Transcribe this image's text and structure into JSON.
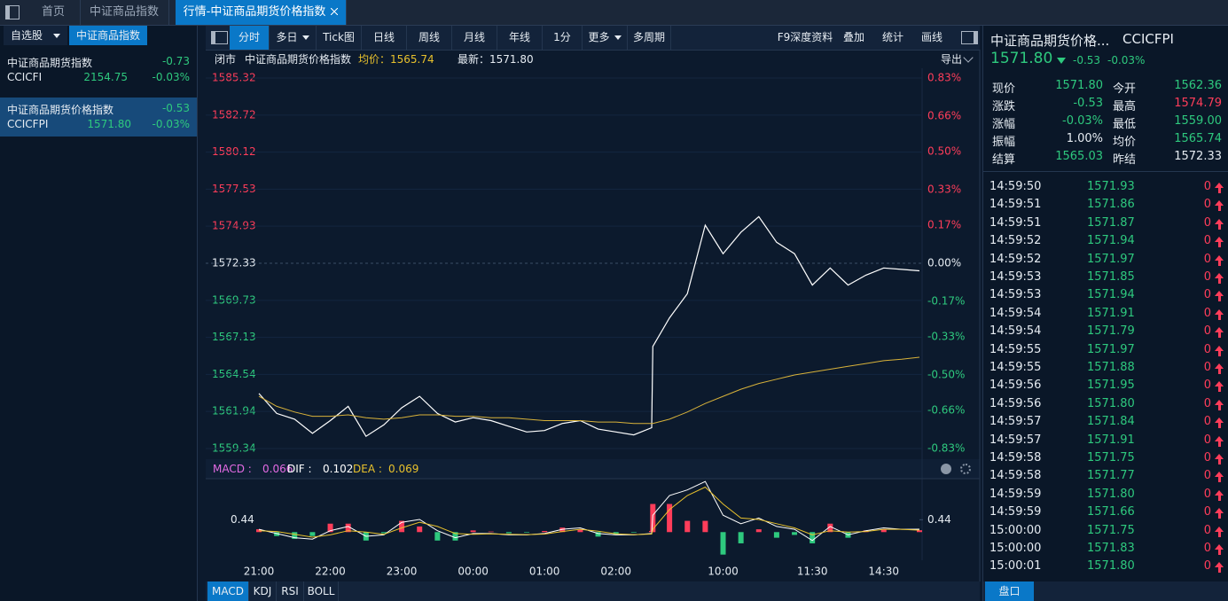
{
  "top_tabs": [
    "首页",
    "中证商品指数",
    "行情-中证商品期货价格指数"
  ],
  "sidebar": {
    "tabs": [
      "自选股",
      "中证商品指数"
    ],
    "items": [
      {
        "name": "中证商品期货指数",
        "change": "-0.73",
        "code": "CCICFI",
        "price": "2154.75",
        "pct": "-0.03%"
      },
      {
        "name": "中证商品期货价格指数",
        "change": "-0.53",
        "code": "CCICFPI",
        "price": "1571.80",
        "pct": "-0.03%"
      }
    ]
  },
  "toolbar": {
    "left": [
      "分时",
      "多日",
      "Tick图",
      "日线",
      "周线",
      "月线",
      "年线",
      "1分",
      "更多",
      "多周期"
    ],
    "right": [
      "F9深度资料",
      "叠加",
      "统计",
      "画线"
    ]
  },
  "info_bar": {
    "status": "闭市",
    "name": "中证商品期货价格指数",
    "avg": "均价：1565.74",
    "last": "最新：1571.80",
    "export": "导出"
  },
  "chart_data": [
    {
      "type": "line",
      "x": [
        0,
        15,
        30,
        45,
        60,
        75,
        90,
        105,
        120,
        135,
        150,
        165,
        180,
        195,
        210,
        225,
        240,
        255,
        270,
        285,
        300,
        315,
        330,
        331,
        345,
        360,
        375,
        390,
        405,
        420,
        435,
        450,
        465,
        480,
        495,
        510,
        525,
        540,
        555
      ],
      "xlim": [
        0,
        555
      ],
      "ylim": [
        1559.34,
        1585.32
      ],
      "yticks": [
        1585.32,
        1582.72,
        1580.12,
        1577.53,
        1574.93,
        1572.33,
        1569.73,
        1567.13,
        1564.54,
        1561.94,
        1559.34
      ],
      "y2lim": [
        -0.83,
        0.83
      ],
      "y2ticks": [
        {
          "value": 0.83,
          "label": "0.83%"
        },
        {
          "value": 0.66,
          "label": "0.66%"
        },
        {
          "value": 0.5,
          "label": "0.50%"
        },
        {
          "value": 0.33,
          "label": "0.33%"
        },
        {
          "value": 0.17,
          "label": "0.17%"
        },
        {
          "value": 0,
          "label": "0.00%"
        },
        {
          "value": -0.17,
          "label": "-0.17%"
        },
        {
          "value": -0.33,
          "label": "-0.33%"
        },
        {
          "value": -0.5,
          "label": "-0.50%"
        },
        {
          "value": -0.66,
          "label": "-0.66%"
        },
        {
          "value": -0.83,
          "label": "-0.83%"
        }
      ],
      "grid": true,
      "up_color": "#ff3d5a",
      "down_color": "#2ec97e",
      "series": [
        {
          "color": "#ffffff",
          "values": [
            1563.2,
            1561.8,
            1561.4,
            1560.4,
            1561.3,
            1562.3,
            1560.2,
            1561.0,
            1562.2,
            1563.0,
            1561.8,
            1561.2,
            1561.5,
            1561.3,
            1560.9,
            1560.5,
            1560.6,
            1561.1,
            1561.3,
            1560.7,
            1560.5,
            1560.3,
            1560.8,
            1566.5,
            1568.5,
            1570.2,
            1575.0,
            1573.0,
            1574.5,
            1575.6,
            1573.8,
            1573.0,
            1570.8,
            1572.0,
            1570.8,
            1571.5,
            1572.0,
            1571.9,
            1571.8
          ]
        },
        {
          "color": "#d8b23a",
          "values": [
            1563.0,
            1562.3,
            1561.9,
            1561.6,
            1561.6,
            1561.7,
            1561.5,
            1561.4,
            1561.5,
            1561.7,
            1561.7,
            1561.6,
            1561.6,
            1561.5,
            1561.5,
            1561.4,
            1561.3,
            1561.3,
            1561.3,
            1561.2,
            1561.2,
            1561.1,
            1561.1,
            1561.1,
            1561.4,
            1561.9,
            1562.5,
            1563.0,
            1563.5,
            1563.9,
            1564.2,
            1564.5,
            1564.7,
            1564.9,
            1565.1,
            1565.3,
            1565.5,
            1565.6,
            1565.74
          ]
        }
      ]
    },
    {
      "type": "macd",
      "x": [
        0,
        15,
        30,
        45,
        60,
        75,
        90,
        105,
        120,
        135,
        150,
        165,
        180,
        195,
        210,
        225,
        240,
        255,
        270,
        285,
        300,
        315,
        330,
        331,
        345,
        360,
        375,
        390,
        405,
        420,
        435,
        450,
        465,
        480,
        495,
        510,
        525,
        540,
        555
      ],
      "xlim": [
        0,
        555
      ],
      "xticks": [
        {
          "value": 0,
          "label": "21:00"
        },
        {
          "value": 60,
          "label": "22:00"
        },
        {
          "value": 120,
          "label": "23:00"
        },
        {
          "value": 180,
          "label": "00:00"
        },
        {
          "value": 240,
          "label": "01:00"
        },
        {
          "value": 300,
          "label": "02:00"
        },
        {
          "value": 390,
          "label": "10:00"
        },
        {
          "value": 465,
          "label": "11:30"
        },
        {
          "value": 525,
          "label": "14:30"
        }
      ],
      "ylim": [
        -1.0,
        1.9
      ],
      "yticks": [
        0.44
      ],
      "up_color": "#ff3d5a",
      "down_color": "#2ec97e",
      "series": [
        {
          "name": "MACD",
          "color": "#e46be4",
          "values": [
            0.1,
            -0.14,
            -0.24,
            -0.14,
            0.3,
            0.3,
            -0.3,
            -0.04,
            0.4,
            0.2,
            -0.3,
            -0.3,
            0.06,
            0.02,
            -0.04,
            -0.02,
            0.04,
            0.16,
            0.1,
            -0.16,
            -0.08,
            -0.02,
            0.04,
            1.0,
            1.0,
            0.4,
            0.4,
            -0.8,
            -0.4,
            0.1,
            -0.2,
            -0.1,
            -0.4,
            0.3,
            -0.2,
            0.06,
            0.1,
            0.0,
            0.066
          ]
        },
        {
          "name": "DIF",
          "color": "#ffffff",
          "values": [
            0.1,
            -0.05,
            -0.2,
            -0.25,
            0.05,
            0.2,
            -0.15,
            -0.1,
            0.35,
            0.45,
            0.05,
            -0.2,
            -0.05,
            -0.05,
            -0.1,
            -0.1,
            -0.05,
            0.1,
            0.15,
            -0.05,
            -0.1,
            -0.1,
            -0.05,
            0.6,
            1.3,
            1.5,
            1.8,
            0.6,
            0.3,
            0.5,
            0.2,
            0.1,
            -0.3,
            0.2,
            -0.1,
            0.05,
            0.15,
            0.1,
            0.102
          ]
        },
        {
          "name": "DEA",
          "color": "#e8c12c",
          "values": [
            0.05,
            0.02,
            -0.08,
            -0.18,
            -0.1,
            0.05,
            0.0,
            -0.08,
            0.15,
            0.35,
            0.2,
            -0.05,
            -0.08,
            -0.06,
            -0.08,
            -0.09,
            -0.07,
            0.02,
            0.1,
            0.03,
            -0.06,
            -0.09,
            -0.07,
            0.1,
            0.8,
            1.3,
            1.6,
            1.0,
            0.5,
            0.45,
            0.3,
            0.15,
            -0.1,
            0.05,
            0.0,
            0.02,
            0.1,
            0.1,
            0.069
          ]
        }
      ]
    }
  ],
  "bottom_tabs": [
    "MACD",
    "KDJ",
    "RSI",
    "BOLL"
  ],
  "quote": {
    "title": "中证商品期货价格...",
    "code": "CCICFPI",
    "price": "1571.80",
    "change": "-0.53",
    "pct": "-0.03%",
    "fields": [
      {
        "label": "现价",
        "value": "1571.80",
        "color": "green"
      },
      {
        "label": "今开",
        "value": "1562.36",
        "color": "green"
      },
      {
        "label": "涨跌",
        "value": "-0.53",
        "color": "green"
      },
      {
        "label": "最高",
        "value": "1574.79",
        "color": "red"
      },
      {
        "label": "涨幅",
        "value": "-0.03%",
        "color": "green"
      },
      {
        "label": "最低",
        "value": "1559.00",
        "color": "green"
      },
      {
        "label": "振幅",
        "value": "1.00%",
        "color": "white"
      },
      {
        "label": "均价",
        "value": "1565.74",
        "color": "green"
      },
      {
        "label": "结算",
        "value": "1565.03",
        "color": "green"
      },
      {
        "label": "昨结",
        "value": "1572.33",
        "color": "white"
      }
    ]
  },
  "ticks": [
    {
      "time": "14:59:50",
      "price": "1571.93",
      "volume": "0"
    },
    {
      "time": "14:59:51",
      "price": "1571.86",
      "volume": "0"
    },
    {
      "time": "14:59:51",
      "price": "1571.87",
      "volume": "0"
    },
    {
      "time": "14:59:52",
      "price": "1571.94",
      "volume": "0"
    },
    {
      "time": "14:59:52",
      "price": "1571.97",
      "volume": "0"
    },
    {
      "time": "14:59:53",
      "price": "1571.85",
      "volume": "0"
    },
    {
      "time": "14:59:53",
      "price": "1571.94",
      "volume": "0"
    },
    {
      "time": "14:59:54",
      "price": "1571.91",
      "volume": "0"
    },
    {
      "time": "14:59:54",
      "price": "1571.79",
      "volume": "0"
    },
    {
      "time": "14:59:55",
      "price": "1571.97",
      "volume": "0"
    },
    {
      "time": "14:59:55",
      "price": "1571.88",
      "volume": "0"
    },
    {
      "time": "14:59:56",
      "price": "1571.95",
      "volume": "0"
    },
    {
      "time": "14:59:56",
      "price": "1571.80",
      "volume": "0"
    },
    {
      "time": "14:59:57",
      "price": "1571.84",
      "volume": "0"
    },
    {
      "time": "14:59:57",
      "price": "1571.91",
      "volume": "0"
    },
    {
      "time": "14:59:58",
      "price": "1571.75",
      "volume": "0"
    },
    {
      "time": "14:59:58",
      "price": "1571.77",
      "volume": "0"
    },
    {
      "time": "14:59:59",
      "price": "1571.80",
      "volume": "0"
    },
    {
      "time": "14:59:59",
      "price": "1571.66",
      "volume": "0"
    },
    {
      "time": "15:00:00",
      "price": "1571.75",
      "volume": "0"
    },
    {
      "time": "15:00:00",
      "price": "1571.83",
      "volume": "0"
    },
    {
      "time": "15:00:01",
      "price": "1571.80",
      "volume": "0"
    }
  ],
  "panel_tab": "盘口"
}
